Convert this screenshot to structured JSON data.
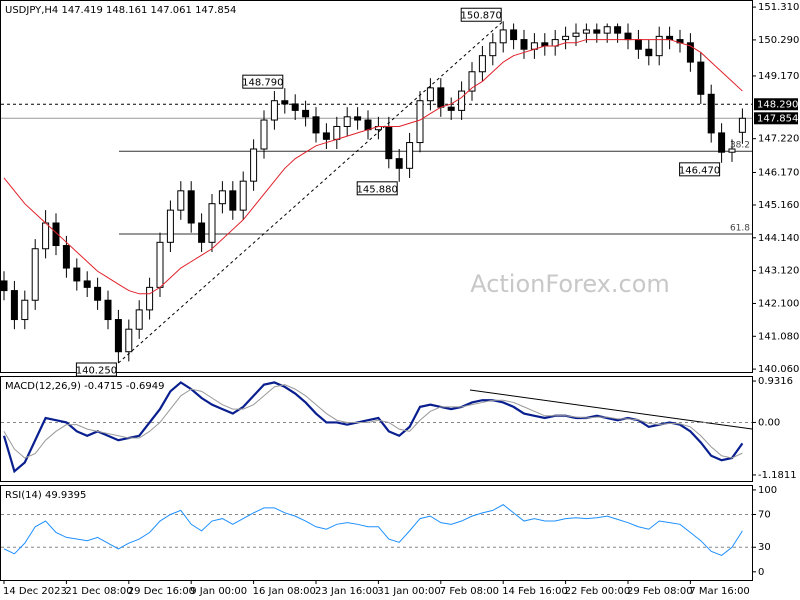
{
  "chart_data": [
    {
      "type": "candlestick",
      "title": "USDJPY,H4  147.419 148.161 147.061 147.854",
      "watermark": "ActionForex.com",
      "categories": [
        "14 Dec 2023",
        null,
        null,
        null,
        null,
        null,
        "21 Dec 08:00",
        null,
        null,
        null,
        null,
        null,
        "29 Dec 16:00",
        null,
        null,
        null,
        null,
        null,
        "9 Jan 00:00",
        null,
        null,
        null,
        null,
        null,
        "16 Jan 08:00",
        null,
        null,
        null,
        null,
        null,
        "23 Jan 16:00",
        null,
        null,
        null,
        null,
        null,
        "31 Jan 00:00",
        null,
        null,
        null,
        null,
        null,
        "7 Feb 08:00",
        null,
        null,
        null,
        null,
        null,
        "14 Feb 16:00",
        null,
        null,
        null,
        null,
        null,
        "22 Feb 00:00",
        null,
        null,
        null,
        null,
        null,
        "29 Feb 08:00",
        null,
        null,
        null,
        null,
        null,
        "7 Mar 16:00",
        null,
        null,
        null,
        null,
        null
      ],
      "open": [
        142.8,
        142.5,
        141.6,
        142.2,
        143.8,
        144.6,
        143.9,
        143.2,
        142.8,
        142.6,
        142.2,
        141.6,
        140.6,
        141.3,
        141.9,
        142.6,
        144.0,
        145.0,
        145.6,
        144.6,
        144.0,
        145.2,
        145.6,
        145.0,
        145.9,
        146.9,
        147.8,
        148.4,
        148.3,
        148.1,
        147.9,
        147.4,
        147.2,
        147.6,
        147.9,
        147.8,
        147.5,
        147.6,
        146.6,
        146.3,
        147.1,
        148.4,
        148.8,
        148.2,
        148.1,
        148.7,
        149.3,
        149.8,
        150.2,
        150.6,
        150.3,
        150.0,
        150.2,
        150.1,
        150.3,
        150.4,
        150.5,
        150.6,
        150.5,
        150.7,
        150.5,
        150.3,
        150.0,
        149.8,
        150.4,
        150.3,
        150.2,
        149.6,
        148.6,
        147.4,
        146.8,
        147.419
      ],
      "high": [
        143.1,
        142.8,
        142.5,
        144.1,
        145.0,
        144.9,
        144.2,
        143.5,
        143.1,
        142.9,
        142.5,
        141.9,
        141.6,
        142.2,
        142.9,
        144.3,
        145.3,
        145.9,
        145.9,
        144.9,
        145.5,
        145.9,
        145.9,
        146.2,
        147.2,
        148.1,
        148.7,
        148.79,
        148.6,
        148.4,
        148.2,
        147.7,
        147.9,
        148.2,
        148.2,
        148.1,
        147.9,
        147.9,
        146.9,
        147.4,
        148.7,
        149.1,
        149.1,
        148.5,
        149.0,
        149.6,
        150.1,
        150.5,
        150.87,
        150.8,
        150.6,
        150.5,
        150.5,
        150.6,
        150.7,
        150.8,
        150.8,
        150.8,
        150.8,
        150.8,
        150.8,
        150.6,
        150.3,
        150.7,
        150.7,
        150.6,
        150.5,
        149.9,
        148.9,
        147.7,
        147.2,
        148.161
      ],
      "low": [
        142.2,
        141.3,
        141.3,
        141.9,
        143.5,
        143.6,
        142.9,
        142.5,
        142.3,
        141.9,
        141.3,
        140.25,
        140.3,
        141.0,
        141.6,
        142.3,
        143.7,
        144.7,
        144.3,
        143.7,
        143.7,
        144.9,
        144.7,
        144.7,
        145.6,
        146.6,
        147.5,
        148.0,
        147.8,
        147.6,
        147.1,
        146.9,
        146.9,
        147.3,
        147.5,
        147.2,
        147.2,
        146.3,
        145.88,
        146.0,
        146.8,
        148.1,
        147.9,
        147.8,
        147.8,
        148.4,
        149.0,
        149.5,
        149.9,
        150.0,
        149.7,
        149.7,
        149.8,
        149.8,
        150.0,
        150.1,
        150.2,
        150.2,
        150.2,
        150.2,
        150.0,
        149.7,
        149.5,
        149.5,
        150.0,
        149.9,
        149.3,
        148.3,
        147.1,
        146.47,
        146.5,
        147.061
      ],
      "close": [
        142.5,
        141.6,
        142.2,
        143.8,
        144.6,
        143.9,
        143.2,
        142.8,
        142.6,
        142.2,
        141.6,
        140.6,
        141.3,
        141.9,
        142.6,
        144.0,
        145.0,
        145.6,
        144.6,
        144.0,
        145.2,
        145.6,
        145.0,
        145.9,
        146.9,
        147.8,
        148.4,
        148.3,
        148.1,
        147.9,
        147.4,
        147.2,
        147.6,
        147.9,
        147.8,
        147.5,
        147.6,
        146.6,
        146.3,
        147.1,
        148.4,
        148.8,
        148.2,
        148.1,
        148.7,
        149.3,
        149.8,
        150.2,
        150.6,
        150.3,
        150.0,
        150.2,
        150.1,
        150.3,
        150.4,
        150.5,
        150.6,
        150.5,
        150.7,
        150.5,
        150.3,
        150.0,
        149.8,
        150.4,
        150.3,
        150.2,
        149.6,
        148.6,
        147.4,
        146.8,
        146.9,
        147.854
      ],
      "ma": {
        "color": "#e0202a",
        "values": [
          146.0,
          145.6,
          145.2,
          144.9,
          144.6,
          144.3,
          144.0,
          143.7,
          143.4,
          143.1,
          142.9,
          142.7,
          142.5,
          142.4,
          142.4,
          142.6,
          142.9,
          143.2,
          143.4,
          143.6,
          143.8,
          144.1,
          144.4,
          144.7,
          145.1,
          145.5,
          145.9,
          146.3,
          146.6,
          146.8,
          147.0,
          147.1,
          147.2,
          147.3,
          147.4,
          147.5,
          147.6,
          147.6,
          147.6,
          147.7,
          147.8,
          148.0,
          148.2,
          148.3,
          148.5,
          148.8,
          149.0,
          149.3,
          149.6,
          149.8,
          149.9,
          150.0,
          150.1,
          150.1,
          150.2,
          150.2,
          150.3,
          150.3,
          150.3,
          150.3,
          150.3,
          150.3,
          150.3,
          150.3,
          150.3,
          150.2,
          150.1,
          149.9,
          149.6,
          149.3,
          149.0,
          148.7
        ]
      },
      "ylim": [
        139.97,
        151.53
      ],
      "yticks": [
        {
          "value": 151.31,
          "label": "151.310"
        },
        {
          "value": 150.29,
          "label": "150.290"
        },
        {
          "value": 149.17,
          "label": "149.170"
        },
        {
          "value": 147.22,
          "label": "147.220"
        },
        {
          "value": 146.17,
          "label": "146.170"
        },
        {
          "value": 145.16,
          "label": "145.160"
        },
        {
          "value": 144.14,
          "label": "144.140"
        },
        {
          "value": 143.12,
          "label": "143.120"
        },
        {
          "value": 142.1,
          "label": "142.100"
        },
        {
          "value": 141.08,
          "label": "141.080"
        },
        {
          "value": 140.06,
          "label": "140.060"
        }
      ],
      "levels": [
        {
          "value": 148.29,
          "label": "148.290",
          "style": "dashed"
        },
        {
          "value": 147.854,
          "label": "147.854",
          "style": "solid"
        }
      ],
      "fib": [
        {
          "label": "38.2",
          "value": 146.83
        },
        {
          "label": "61.8",
          "value": 144.26
        }
      ],
      "annotations": [
        {
          "text": "150.870",
          "value": 150.87,
          "index": 48
        },
        {
          "text": "148.790",
          "value": 148.79,
          "index": 27
        },
        {
          "text": "145.880",
          "value": 145.88,
          "index": 38
        },
        {
          "text": "146.470",
          "value": 146.47,
          "index": 69
        },
        {
          "text": "140.250",
          "value": 140.25,
          "index": 11
        }
      ]
    },
    {
      "type": "line",
      "title": "MACD(12,26,9) -0.4715 -0.6949",
      "series": [
        {
          "color": "#0a1f8f",
          "values": [
            -0.3,
            -1.1,
            -0.9,
            -0.4,
            0.1,
            0.05,
            0.0,
            -0.2,
            -0.3,
            -0.2,
            -0.3,
            -0.4,
            -0.35,
            -0.3,
            0.0,
            0.3,
            0.7,
            0.9,
            0.75,
            0.55,
            0.4,
            0.3,
            0.2,
            0.35,
            0.6,
            0.85,
            0.9,
            0.8,
            0.65,
            0.45,
            0.2,
            0.0,
            0.0,
            -0.05,
            0.0,
            0.05,
            0.1,
            -0.2,
            -0.3,
            -0.1,
            0.35,
            0.4,
            0.35,
            0.3,
            0.35,
            0.45,
            0.5,
            0.5,
            0.45,
            0.35,
            0.2,
            0.15,
            0.1,
            0.15,
            0.15,
            0.1,
            0.1,
            0.15,
            0.1,
            0.05,
            0.1,
            0.05,
            -0.1,
            -0.05,
            0.0,
            -0.05,
            -0.2,
            -0.45,
            -0.75,
            -0.85,
            -0.8,
            -0.47
          ]
        },
        {
          "color": "#999999",
          "values": [
            -0.2,
            -0.6,
            -0.8,
            -0.7,
            -0.4,
            -0.2,
            -0.05,
            -0.05,
            -0.15,
            -0.2,
            -0.25,
            -0.3,
            -0.35,
            -0.35,
            -0.2,
            0.0,
            0.3,
            0.6,
            0.75,
            0.7,
            0.55,
            0.4,
            0.3,
            0.3,
            0.4,
            0.6,
            0.8,
            0.85,
            0.75,
            0.6,
            0.4,
            0.2,
            0.05,
            0.0,
            0.0,
            0.0,
            0.05,
            0.0,
            -0.15,
            -0.2,
            0.05,
            0.25,
            0.35,
            0.35,
            0.35,
            0.4,
            0.45,
            0.5,
            0.5,
            0.45,
            0.35,
            0.25,
            0.15,
            0.15,
            0.15,
            0.12,
            0.1,
            0.12,
            0.12,
            0.08,
            0.08,
            0.06,
            -0.02,
            -0.05,
            -0.02,
            -0.03,
            -0.1,
            -0.3,
            -0.55,
            -0.75,
            -0.8,
            -0.69
          ]
        }
      ],
      "ylim": [
        -1.34,
        1.045
      ],
      "yticks": [
        0.9316,
        {
          "value": 0,
          "label": "0.00"
        },
        -1.1811
      ],
      "gridlines": [
        0
      ]
    },
    {
      "type": "line",
      "title": "RSI(14) 49.9395",
      "series": [
        {
          "color": "#1e90ff",
          "values": [
            28,
            22,
            35,
            55,
            62,
            48,
            42,
            40,
            38,
            42,
            35,
            28,
            35,
            40,
            48,
            62,
            70,
            75,
            58,
            50,
            62,
            65,
            58,
            65,
            72,
            78,
            78,
            72,
            68,
            62,
            55,
            52,
            58,
            60,
            58,
            55,
            55,
            40,
            36,
            50,
            65,
            68,
            60,
            58,
            62,
            68,
            72,
            75,
            82,
            72,
            62,
            65,
            62,
            62,
            65,
            66,
            65,
            66,
            68,
            64,
            60,
            55,
            52,
            62,
            60,
            58,
            48,
            38,
            25,
            20,
            30,
            50
          ]
        }
      ],
      "ylim": [
        -10,
        106
      ],
      "yticks": [
        100,
        70,
        30,
        0
      ],
      "gridlines": [
        70,
        30
      ]
    }
  ]
}
